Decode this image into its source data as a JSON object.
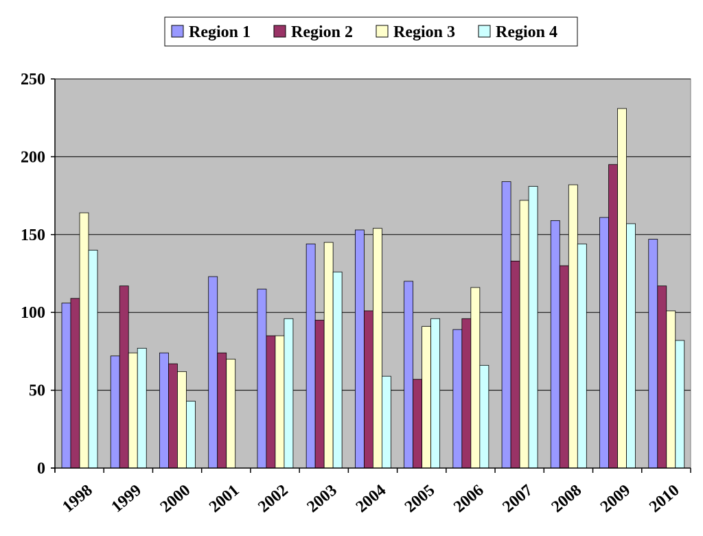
{
  "chart_data": {
    "type": "bar",
    "title": "",
    "xlabel": "",
    "ylabel": "",
    "categories": [
      "1998",
      "1999",
      "2000",
      "2001",
      "2002",
      "2003",
      "2004",
      "2005",
      "2006",
      "2007",
      "2008",
      "2009",
      "2010"
    ],
    "series": [
      {
        "name": "Region 1",
        "color": "#9999ff",
        "values": [
          106,
          72,
          74,
          123,
          115,
          144,
          153,
          120,
          89,
          184,
          159,
          161,
          147
        ]
      },
      {
        "name": "Region 2",
        "color": "#993366",
        "values": [
          109,
          117,
          67,
          74,
          85,
          95,
          101,
          57,
          96,
          133,
          130,
          195,
          117
        ]
      },
      {
        "name": "Region 3",
        "color": "#ffffcc",
        "values": [
          164,
          74,
          62,
          70,
          85,
          145,
          154,
          91,
          116,
          172,
          182,
          231,
          101
        ]
      },
      {
        "name": "Region 4",
        "color": "#ccffff",
        "values": [
          140,
          77,
          43,
          0,
          96,
          126,
          59,
          96,
          66,
          181,
          144,
          157,
          82
        ]
      }
    ],
    "ylim": [
      0,
      250
    ],
    "yticks": [
      0,
      50,
      100,
      150,
      200,
      250
    ],
    "grid": true,
    "plot_background": "#c0c0c0",
    "legend_position": "top"
  }
}
